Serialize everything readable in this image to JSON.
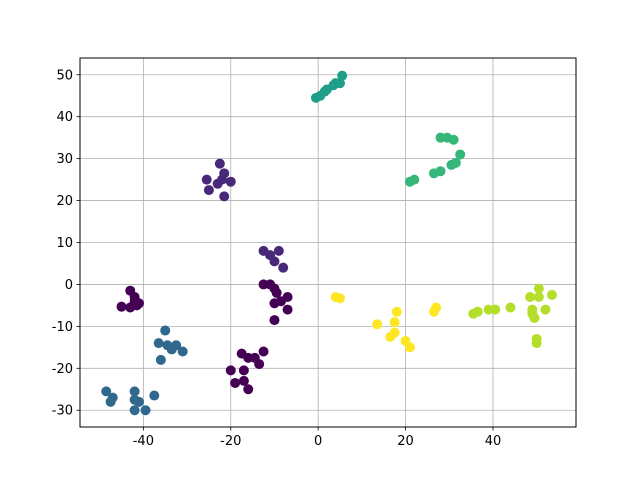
{
  "chart_data": {
    "type": "scatter",
    "title": "",
    "xlabel": "",
    "ylabel": "",
    "xlim": [
      -54.5,
      59.0
    ],
    "ylim": [
      -34.0,
      54.0
    ],
    "xticks": [
      -40,
      -20,
      0,
      20,
      40
    ],
    "yticks": [
      -30,
      -20,
      -10,
      0,
      10,
      20,
      30,
      40,
      50
    ],
    "grid": true,
    "legend": "none",
    "colors": [
      "#440154",
      "#482878",
      "#3e4989",
      "#31688e",
      "#26828e",
      "#1f9e89",
      "#35b779",
      "#6ece58",
      "#b5de2b",
      "#fde725"
    ],
    "points": [
      {
        "x": -43.0,
        "y": -1.5,
        "c": 0
      },
      {
        "x": -42.0,
        "y": -3.0,
        "c": 0
      },
      {
        "x": -41.0,
        "y": -4.5,
        "c": 0
      },
      {
        "x": -42.0,
        "y": -4.0,
        "c": 0
      },
      {
        "x": -43.0,
        "y": -5.5,
        "c": 0
      },
      {
        "x": -45.0,
        "y": -5.3,
        "c": 0
      },
      {
        "x": -41.5,
        "y": -5.0,
        "c": 0
      },
      {
        "x": -20.0,
        "y": -20.5,
        "c": 0
      },
      {
        "x": -19.0,
        "y": -23.5,
        "c": 0
      },
      {
        "x": -17.5,
        "y": -16.5,
        "c": 0
      },
      {
        "x": -17.0,
        "y": -20.5,
        "c": 0
      },
      {
        "x": -17.0,
        "y": -23.0,
        "c": 0
      },
      {
        "x": -16.0,
        "y": -17.5,
        "c": 0
      },
      {
        "x": -16.0,
        "y": -25.0,
        "c": 0
      },
      {
        "x": -14.5,
        "y": -17.5,
        "c": 0
      },
      {
        "x": -13.5,
        "y": -19.0,
        "c": 0
      },
      {
        "x": -12.5,
        "y": -16.0,
        "c": 0
      },
      {
        "x": -12.5,
        "y": 0.0,
        "c": 0
      },
      {
        "x": -11.0,
        "y": 0.0,
        "c": 0
      },
      {
        "x": -10.0,
        "y": -1.0,
        "c": 0
      },
      {
        "x": -9.5,
        "y": -2.0,
        "c": 0
      },
      {
        "x": -8.5,
        "y": -4.0,
        "c": 0
      },
      {
        "x": -10.0,
        "y": -4.5,
        "c": 0
      },
      {
        "x": -7.0,
        "y": -3.0,
        "c": 0
      },
      {
        "x": -7.0,
        "y": -6.0,
        "c": 0
      },
      {
        "x": -10.0,
        "y": -8.5,
        "c": 0
      },
      {
        "x": -12.5,
        "y": 8.0,
        "c": 1
      },
      {
        "x": -11.0,
        "y": 7.0,
        "c": 1
      },
      {
        "x": -10.0,
        "y": 5.5,
        "c": 1
      },
      {
        "x": -9.0,
        "y": 8.0,
        "c": 1
      },
      {
        "x": -8.0,
        "y": 4.0,
        "c": 1
      },
      {
        "x": -25.5,
        "y": 25.0,
        "c": 1
      },
      {
        "x": -25.0,
        "y": 22.5,
        "c": 1
      },
      {
        "x": -23.0,
        "y": 24.0,
        "c": 1
      },
      {
        "x": -22.0,
        "y": 25.0,
        "c": 1
      },
      {
        "x": -22.5,
        "y": 28.8,
        "c": 1
      },
      {
        "x": -21.5,
        "y": 26.5,
        "c": 1
      },
      {
        "x": -20.0,
        "y": 24.5,
        "c": 1
      },
      {
        "x": -21.5,
        "y": 21.0,
        "c": 1
      },
      {
        "x": -35.0,
        "y": -11.0,
        "c": 3
      },
      {
        "x": -36.5,
        "y": -14.0,
        "c": 3
      },
      {
        "x": -34.5,
        "y": -14.5,
        "c": 3
      },
      {
        "x": -33.5,
        "y": -15.5,
        "c": 3
      },
      {
        "x": -32.5,
        "y": -14.5,
        "c": 3
      },
      {
        "x": -31.0,
        "y": -16.0,
        "c": 3
      },
      {
        "x": -36.0,
        "y": -18.0,
        "c": 3
      },
      {
        "x": -48.5,
        "y": -25.5,
        "c": 3
      },
      {
        "x": -47.5,
        "y": -28.0,
        "c": 3
      },
      {
        "x": -47.0,
        "y": -27.0,
        "c": 3
      },
      {
        "x": -42.0,
        "y": -25.5,
        "c": 3
      },
      {
        "x": -42.0,
        "y": -27.5,
        "c": 3
      },
      {
        "x": -41.0,
        "y": -28.0,
        "c": 3
      },
      {
        "x": -42.0,
        "y": -30.0,
        "c": 3
      },
      {
        "x": -39.5,
        "y": -30.0,
        "c": 3
      },
      {
        "x": -37.5,
        "y": -26.5,
        "c": 3
      },
      {
        "x": -0.5,
        "y": 44.5,
        "c": 5
      },
      {
        "x": 0.5,
        "y": 45.0,
        "c": 5
      },
      {
        "x": 1.5,
        "y": 46.0,
        "c": 5
      },
      {
        "x": 2.0,
        "y": 46.5,
        "c": 5
      },
      {
        "x": 3.5,
        "y": 47.5,
        "c": 5
      },
      {
        "x": 4.0,
        "y": 48.0,
        "c": 5
      },
      {
        "x": 5.0,
        "y": 48.0,
        "c": 5
      },
      {
        "x": 5.5,
        "y": 49.8,
        "c": 5
      },
      {
        "x": 21.0,
        "y": 24.5,
        "c": 6
      },
      {
        "x": 22.0,
        "y": 25.0,
        "c": 6
      },
      {
        "x": 26.5,
        "y": 26.5,
        "c": 6
      },
      {
        "x": 28.0,
        "y": 27.0,
        "c": 6
      },
      {
        "x": 28.0,
        "y": 35.0,
        "c": 6
      },
      {
        "x": 29.5,
        "y": 35.0,
        "c": 6
      },
      {
        "x": 31.0,
        "y": 34.5,
        "c": 6
      },
      {
        "x": 30.5,
        "y": 28.5,
        "c": 6
      },
      {
        "x": 31.5,
        "y": 29.0,
        "c": 6
      },
      {
        "x": 32.5,
        "y": 31.0,
        "c": 6
      },
      {
        "x": 35.5,
        "y": -7.0,
        "c": 8
      },
      {
        "x": 36.5,
        "y": -6.5,
        "c": 8
      },
      {
        "x": 39.0,
        "y": -6.0,
        "c": 8
      },
      {
        "x": 40.5,
        "y": -6.0,
        "c": 8
      },
      {
        "x": 44.0,
        "y": -5.5,
        "c": 8
      },
      {
        "x": 48.5,
        "y": -3.0,
        "c": 8
      },
      {
        "x": 49.0,
        "y": -6.0,
        "c": 8
      },
      {
        "x": 49.0,
        "y": -7.0,
        "c": 8
      },
      {
        "x": 49.5,
        "y": -8.0,
        "c": 8
      },
      {
        "x": 50.0,
        "y": -13.0,
        "c": 8
      },
      {
        "x": 50.0,
        "y": -14.0,
        "c": 8
      },
      {
        "x": 50.5,
        "y": -1.0,
        "c": 8
      },
      {
        "x": 50.5,
        "y": -3.0,
        "c": 8
      },
      {
        "x": 52.0,
        "y": -6.0,
        "c": 8
      },
      {
        "x": 53.5,
        "y": -2.5,
        "c": 8
      },
      {
        "x": 4.0,
        "y": -3.0,
        "c": 9
      },
      {
        "x": 5.0,
        "y": -3.3,
        "c": 9
      },
      {
        "x": 13.5,
        "y": -9.5,
        "c": 9
      },
      {
        "x": 16.5,
        "y": -12.5,
        "c": 9
      },
      {
        "x": 17.5,
        "y": -9.0,
        "c": 9
      },
      {
        "x": 17.5,
        "y": -11.5,
        "c": 9
      },
      {
        "x": 18.0,
        "y": -6.5,
        "c": 9
      },
      {
        "x": 20.0,
        "y": -13.5,
        "c": 9
      },
      {
        "x": 21.0,
        "y": -15.0,
        "c": 9
      },
      {
        "x": 26.5,
        "y": -6.5,
        "c": 9
      },
      {
        "x": 27.0,
        "y": -5.5,
        "c": 9
      }
    ]
  }
}
